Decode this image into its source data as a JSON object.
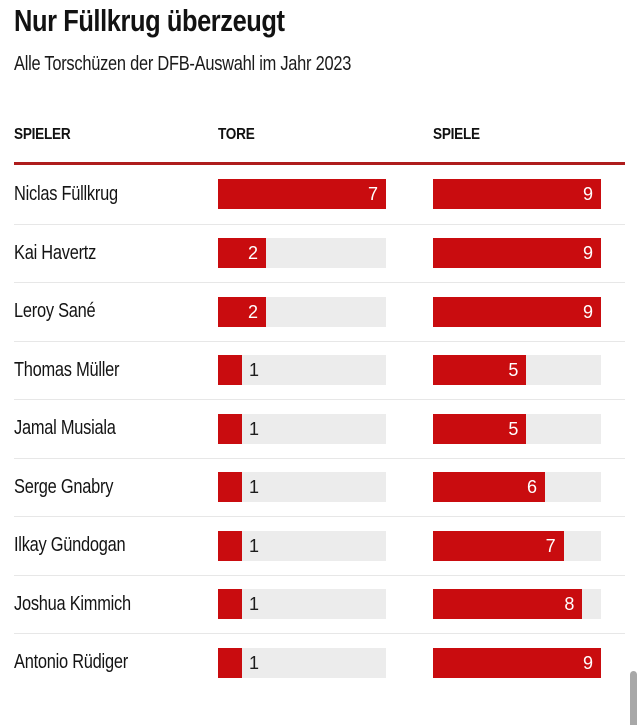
{
  "title": "Nur Füllkrug überzeugt",
  "subtitle": "Alle Torschüzen der DFB-Auswahl im Jahr 2023",
  "columns": {
    "player": "SPIELER",
    "goals": "TORE",
    "games": "SPIELE"
  },
  "bar_max": {
    "tore": 7,
    "spiele": 9
  },
  "rows": [
    {
      "name": "Niclas Füllkrug",
      "tore": 7,
      "spiele": 9
    },
    {
      "name": "Kai Havertz",
      "tore": 2,
      "spiele": 9
    },
    {
      "name": "Leroy Sané",
      "tore": 2,
      "spiele": 9
    },
    {
      "name": "Thomas Müller",
      "tore": 1,
      "spiele": 5
    },
    {
      "name": "Jamal Musiala",
      "tore": 1,
      "spiele": 5
    },
    {
      "name": "Serge Gnabry",
      "tore": 1,
      "spiele": 6
    },
    {
      "name": "Ilkay Gündogan",
      "tore": 1,
      "spiele": 7
    },
    {
      "name": "Joshua Kimmich",
      "tore": 1,
      "spiele": 8
    },
    {
      "name": "Antonio Rüdiger",
      "tore": 1,
      "spiele": 9
    }
  ],
  "colors": {
    "bar_red": "#c90c0f",
    "track_gray": "#ececec",
    "header_rule_red": "#ae1c1c",
    "row_divider": "#e7e7e7",
    "label_inside": "#ffffff",
    "label_outside": "#1d1d1d",
    "scrollbar_gray": "#a8a8a8"
  },
  "chart_data": {
    "type": "bar",
    "title": "Nur Füllkrug überzeugt",
    "subtitle": "Alle Torschüzen der DFB-Auswahl im Jahr 2023",
    "orientation": "horizontal",
    "categories": [
      "Niclas Füllkrug",
      "Kai Havertz",
      "Leroy Sané",
      "Thomas Müller",
      "Jamal Musiala",
      "Serge Gnabry",
      "Ilkay Gündogan",
      "Joshua Kimmich",
      "Antonio Rüdiger"
    ],
    "series": [
      {
        "name": "Tore",
        "values": [
          7,
          2,
          2,
          1,
          1,
          1,
          1,
          1,
          1
        ],
        "xlim": [
          0,
          7
        ]
      },
      {
        "name": "Spiele",
        "values": [
          9,
          9,
          9,
          5,
          5,
          6,
          7,
          8,
          9
        ],
        "xlim": [
          0,
          9
        ]
      }
    ],
    "legend_position": "column-headers",
    "grid": false,
    "data_labels": true
  }
}
